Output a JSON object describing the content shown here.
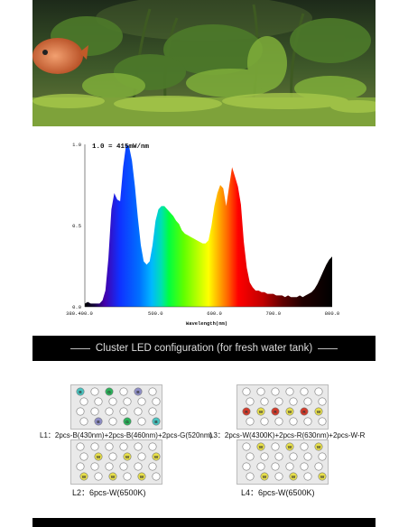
{
  "chart_data": {
    "type": "area",
    "title": "1.0 = 415mW/nm",
    "xlabel": "Wavelength(nm)",
    "ylabel": "",
    "xlim": [
      380,
      800
    ],
    "ylim": [
      0,
      1.0
    ],
    "x_ticks": [
      "380.400.0",
      "500.0",
      "600.0",
      "700.0",
      "800.0"
    ],
    "y_ticks": [
      "1.0",
      "0.5",
      "0.0"
    ],
    "grid": false,
    "series": [
      {
        "x": [
          380,
          385,
          390,
          395,
          400,
          405,
          410,
          415,
          420,
          425,
          430,
          435,
          440,
          445,
          450,
          455,
          460,
          465,
          470,
          475,
          480,
          485,
          490,
          495,
          500,
          505,
          510,
          515,
          520,
          525,
          530,
          535,
          540,
          545,
          550,
          555,
          560,
          565,
          570,
          575,
          580,
          585,
          590,
          595,
          600,
          605,
          610,
          615,
          620,
          625,
          630,
          635,
          640,
          645,
          650,
          655,
          660,
          665,
          670,
          675,
          680,
          685,
          690,
          695,
          700,
          705,
          710,
          715,
          720,
          725,
          730,
          735,
          740,
          745,
          750,
          755,
          760,
          765,
          770,
          775,
          780,
          785,
          790,
          795,
          800
        ],
        "y": [
          0.02,
          0.03,
          0.02,
          0.02,
          0.02,
          0.02,
          0.04,
          0.1,
          0.3,
          0.6,
          0.7,
          0.66,
          0.65,
          0.86,
          1.0,
          0.99,
          0.9,
          0.74,
          0.55,
          0.38,
          0.28,
          0.26,
          0.28,
          0.38,
          0.53,
          0.6,
          0.62,
          0.62,
          0.6,
          0.58,
          0.56,
          0.53,
          0.51,
          0.47,
          0.45,
          0.44,
          0.43,
          0.42,
          0.41,
          0.4,
          0.39,
          0.39,
          0.41,
          0.5,
          0.62,
          0.7,
          0.75,
          0.73,
          0.62,
          0.74,
          0.86,
          0.8,
          0.74,
          0.63,
          0.4,
          0.24,
          0.15,
          0.12,
          0.1,
          0.1,
          0.09,
          0.09,
          0.08,
          0.08,
          0.08,
          0.07,
          0.07,
          0.07,
          0.06,
          0.07,
          0.06,
          0.06,
          0.06,
          0.07,
          0.06,
          0.07,
          0.08,
          0.09,
          0.11,
          0.14,
          0.18,
          0.22,
          0.26,
          0.29,
          0.31
        ]
      }
    ]
  },
  "banner_title": "Cluster LED configuration (for fresh water tank)",
  "configs": [
    {
      "caption": "L1：2pcs-B(430nm)+2pcs-B(460nm)+2pcs-G(520nm)",
      "leds": [
        {
          "color": "#48c4c0",
          "label": "B"
        },
        {
          "color": "#ffffff",
          "label": ""
        },
        {
          "color": "#2ab35a",
          "label": "G"
        },
        {
          "color": "#ffffff",
          "label": ""
        },
        {
          "color": "#8f8fc8",
          "label": "B"
        },
        {
          "color": "#ffffff",
          "label": ""
        },
        {
          "color": "#ffffff",
          "label": ""
        },
        {
          "color": "#ffffff",
          "label": ""
        },
        {
          "color": "#ffffff",
          "label": ""
        },
        {
          "color": "#ffffff",
          "label": ""
        },
        {
          "color": "#ffffff",
          "label": ""
        },
        {
          "color": "#ffffff",
          "label": ""
        },
        {
          "color": "#ffffff",
          "label": ""
        },
        {
          "color": "#ffffff",
          "label": ""
        },
        {
          "color": "#ffffff",
          "label": ""
        },
        {
          "color": "#ffffff",
          "label": ""
        },
        {
          "color": "#ffffff",
          "label": ""
        },
        {
          "color": "#ffffff",
          "label": ""
        },
        {
          "color": "#ffffff",
          "label": ""
        },
        {
          "color": "#8f8fc8",
          "label": "B"
        },
        {
          "color": "#ffffff",
          "label": ""
        },
        {
          "color": "#2ab35a",
          "label": "G"
        },
        {
          "color": "#ffffff",
          "label": ""
        },
        {
          "color": "#48c4c0",
          "label": "B"
        }
      ]
    },
    {
      "caption": "L3：2pcs-W(4300K)+2pcs-R(630nm)+2pcs-W-R",
      "leds": [
        {
          "color": "#ffffff",
          "label": ""
        },
        {
          "color": "#ffffff",
          "label": ""
        },
        {
          "color": "#ffffff",
          "label": ""
        },
        {
          "color": "#ffffff",
          "label": ""
        },
        {
          "color": "#ffffff",
          "label": ""
        },
        {
          "color": "#ffffff",
          "label": ""
        },
        {
          "color": "#ffffff",
          "label": ""
        },
        {
          "color": "#ffffff",
          "label": ""
        },
        {
          "color": "#ffffff",
          "label": ""
        },
        {
          "color": "#ffffff",
          "label": ""
        },
        {
          "color": "#ffffff",
          "label": ""
        },
        {
          "color": "#ffffff",
          "label": ""
        },
        {
          "color": "#d43a2a",
          "label": "R"
        },
        {
          "color": "#e8e04a",
          "label": "W"
        },
        {
          "color": "#d43a2a",
          "label": "R"
        },
        {
          "color": "#e8e04a",
          "label": "W"
        },
        {
          "color": "#d43a2a",
          "label": "R"
        },
        {
          "color": "#e8e04a",
          "label": "W"
        },
        {
          "color": "#ffffff",
          "label": ""
        },
        {
          "color": "#ffffff",
          "label": ""
        },
        {
          "color": "#ffffff",
          "label": ""
        },
        {
          "color": "#ffffff",
          "label": ""
        },
        {
          "color": "#ffffff",
          "label": ""
        },
        {
          "color": "#ffffff",
          "label": ""
        }
      ]
    },
    {
      "caption": "L2：6pcs-W(6500K)",
      "leds": [
        {
          "color": "#ffffff",
          "label": ""
        },
        {
          "color": "#ffffff",
          "label": ""
        },
        {
          "color": "#ffffff",
          "label": ""
        },
        {
          "color": "#ffffff",
          "label": ""
        },
        {
          "color": "#ffffff",
          "label": ""
        },
        {
          "color": "#ffffff",
          "label": ""
        },
        {
          "color": "#ffffff",
          "label": ""
        },
        {
          "color": "#e8e04a",
          "label": "W"
        },
        {
          "color": "#ffffff",
          "label": ""
        },
        {
          "color": "#e8e04a",
          "label": "W"
        },
        {
          "color": "#ffffff",
          "label": ""
        },
        {
          "color": "#e8e04a",
          "label": "W"
        },
        {
          "color": "#ffffff",
          "label": ""
        },
        {
          "color": "#ffffff",
          "label": ""
        },
        {
          "color": "#ffffff",
          "label": ""
        },
        {
          "color": "#ffffff",
          "label": ""
        },
        {
          "color": "#ffffff",
          "label": ""
        },
        {
          "color": "#ffffff",
          "label": ""
        },
        {
          "color": "#e8e04a",
          "label": "W"
        },
        {
          "color": "#ffffff",
          "label": ""
        },
        {
          "color": "#e8e04a",
          "label": "W"
        },
        {
          "color": "#ffffff",
          "label": ""
        },
        {
          "color": "#e8e04a",
          "label": "W"
        },
        {
          "color": "#ffffff",
          "label": ""
        }
      ]
    },
    {
      "caption": "L4：6pcs-W(6500K)",
      "leds": [
        {
          "color": "#ffffff",
          "label": ""
        },
        {
          "color": "#e8e04a",
          "label": "W"
        },
        {
          "color": "#ffffff",
          "label": ""
        },
        {
          "color": "#e8e04a",
          "label": "W"
        },
        {
          "color": "#ffffff",
          "label": ""
        },
        {
          "color": "#e8e04a",
          "label": "W"
        },
        {
          "color": "#ffffff",
          "label": ""
        },
        {
          "color": "#ffffff",
          "label": ""
        },
        {
          "color": "#ffffff",
          "label": ""
        },
        {
          "color": "#ffffff",
          "label": ""
        },
        {
          "color": "#ffffff",
          "label": ""
        },
        {
          "color": "#ffffff",
          "label": ""
        },
        {
          "color": "#ffffff",
          "label": ""
        },
        {
          "color": "#ffffff",
          "label": ""
        },
        {
          "color": "#ffffff",
          "label": ""
        },
        {
          "color": "#ffffff",
          "label": ""
        },
        {
          "color": "#ffffff",
          "label": ""
        },
        {
          "color": "#ffffff",
          "label": ""
        },
        {
          "color": "#ffffff",
          "label": ""
        },
        {
          "color": "#e8e04a",
          "label": "W"
        },
        {
          "color": "#ffffff",
          "label": ""
        },
        {
          "color": "#e8e04a",
          "label": "W"
        },
        {
          "color": "#ffffff",
          "label": ""
        },
        {
          "color": "#e8e04a",
          "label": "W"
        }
      ]
    }
  ]
}
